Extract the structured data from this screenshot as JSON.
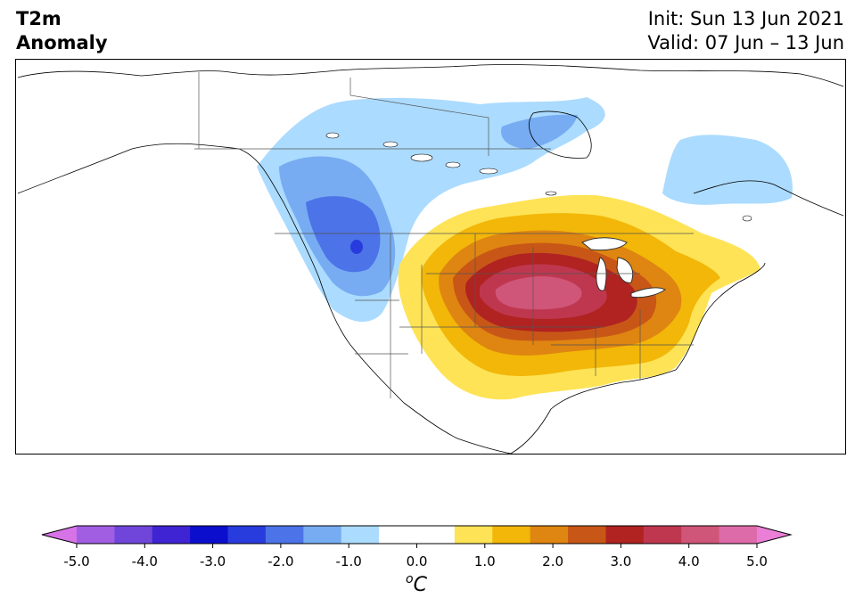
{
  "header": {
    "variable": "T2m",
    "subtitle": "Anomaly",
    "init": "Init: Sun 13 Jun 2021",
    "valid": "Valid: 07 Jun – 13 Jun"
  },
  "colorbar": {
    "colors": [
      "#d673e7",
      "#a25ee3",
      "#7046da",
      "#3e24d2",
      "#0c0ecd",
      "#283bdc",
      "#4c73e8",
      "#77acf2",
      "#abdbff",
      "#ffffff",
      "#ffffff",
      "#fee356",
      "#f2b708",
      "#df8511",
      "#c85717",
      "#b02321",
      "#bf374f",
      "#cf5679",
      "#de6ba9",
      "#eb7ed6"
    ],
    "ticks": [
      "-5.0",
      "-4.0",
      "-3.0",
      "-2.0",
      "-1.0",
      "0.0",
      "1.0",
      "2.0",
      "3.0",
      "4.0",
      "5.0"
    ],
    "unit_sup": "o",
    "unit_main": "C"
  }
}
